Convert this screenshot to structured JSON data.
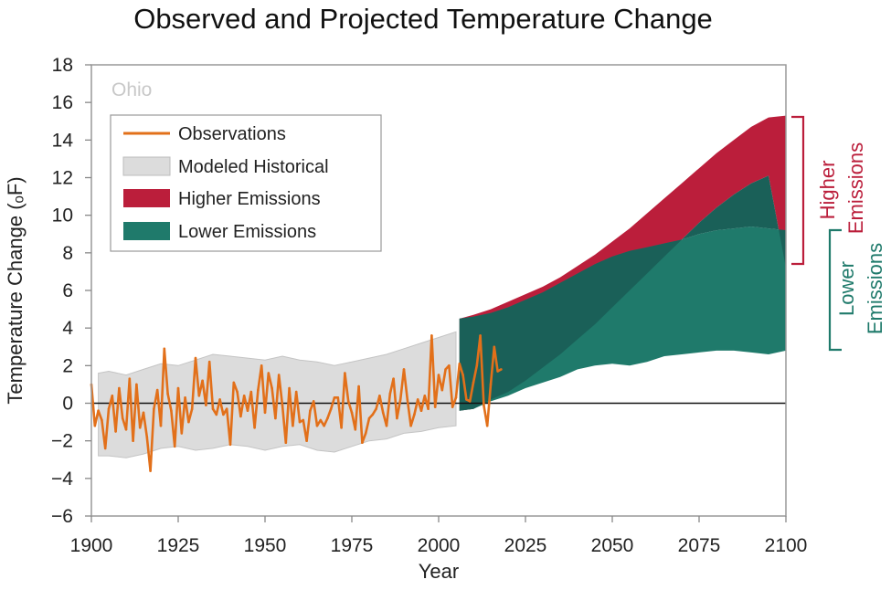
{
  "chart_data": {
    "type": "area",
    "title": "Observed and Projected Temperature Change",
    "xlabel": "Year",
    "ylabel": "Temperature Change (ₒF)",
    "region_label": "Ohio",
    "xlim": [
      1900,
      2100
    ],
    "ylim": [
      -6,
      18
    ],
    "x_ticks": [
      1900,
      1925,
      1950,
      1975,
      2000,
      2025,
      2050,
      2075,
      2100
    ],
    "y_ticks": [
      -6,
      -4,
      -2,
      0,
      2,
      4,
      6,
      8,
      10,
      12,
      14,
      16,
      18
    ],
    "grid": false,
    "zero_line": true,
    "legend": {
      "placement": "top-left",
      "entries": [
        "Observations",
        "Modeled Historical",
        "Higher Emissions",
        "Lower Emissions"
      ]
    },
    "colors": {
      "observations": "#e2701a",
      "modeled_historical": "#dcdcdc",
      "higher_emissions": "#bb1e3b",
      "lower_emissions": "#1f7a6b",
      "overlap": "#1a6058",
      "region_label": "#c8c8c8"
    },
    "series": [
      {
        "name": "Observations",
        "kind": "line",
        "x": [
          1900,
          1901,
          1902,
          1903,
          1904,
          1905,
          1906,
          1907,
          1908,
          1909,
          1910,
          1911,
          1912,
          1913,
          1914,
          1915,
          1916,
          1917,
          1918,
          1919,
          1920,
          1921,
          1922,
          1923,
          1924,
          1925,
          1926,
          1927,
          1928,
          1929,
          1930,
          1931,
          1932,
          1933,
          1934,
          1935,
          1936,
          1937,
          1938,
          1939,
          1940,
          1941,
          1942,
          1943,
          1944,
          1945,
          1946,
          1947,
          1948,
          1949,
          1950,
          1951,
          1952,
          1953,
          1954,
          1955,
          1956,
          1957,
          1958,
          1959,
          1960,
          1961,
          1962,
          1963,
          1964,
          1965,
          1966,
          1967,
          1968,
          1969,
          1970,
          1971,
          1972,
          1973,
          1974,
          1975,
          1976,
          1977,
          1978,
          1979,
          1980,
          1981,
          1982,
          1983,
          1984,
          1985,
          1986,
          1987,
          1988,
          1989,
          1990,
          1991,
          1992,
          1993,
          1994,
          1995,
          1996,
          1997,
          1998,
          1999,
          2000,
          2001,
          2002,
          2003,
          2004,
          2005,
          2006,
          2007,
          2008,
          2009,
          2010,
          2011,
          2012,
          2013,
          2014,
          2015,
          2016,
          2017,
          2018
        ],
        "y": [
          1.0,
          -1.2,
          -0.4,
          -0.9,
          -2.4,
          -0.3,
          0.4,
          -1.5,
          0.8,
          -0.8,
          -1.4,
          1.3,
          -2.0,
          1.0,
          -1.3,
          -0.5,
          -1.8,
          -3.6,
          -0.3,
          0.7,
          -1.2,
          2.9,
          0.5,
          -0.4,
          -2.3,
          0.8,
          -1.6,
          0.3,
          -1.0,
          -0.3,
          2.4,
          0.4,
          1.2,
          -0.1,
          2.2,
          -0.3,
          -0.6,
          0.2,
          -0.6,
          -0.3,
          -2.2,
          1.1,
          0.6,
          -0.7,
          0.4,
          -0.4,
          0.6,
          -1.3,
          0.7,
          2.0,
          -0.5,
          1.6,
          0.8,
          -0.8,
          1.5,
          -0.1,
          -2.1,
          0.8,
          -1.2,
          0.6,
          -1.0,
          -0.9,
          -2.0,
          -0.4,
          0.1,
          -1.2,
          -0.9,
          -1.2,
          -0.8,
          -0.3,
          0.3,
          0.3,
          -1.3,
          1.6,
          0.1,
          -0.5,
          -1.4,
          0.9,
          -2.1,
          -1.6,
          -0.8,
          -0.6,
          -0.3,
          0.4,
          -0.5,
          -1.2,
          0.5,
          1.3,
          -0.8,
          0.2,
          1.8,
          0.2,
          -1.2,
          -0.6,
          0.2,
          -0.4,
          0.4,
          -0.3,
          3.6,
          -0.2,
          1.5,
          0.7,
          1.8,
          2.0,
          -0.2,
          0.3,
          2.1,
          1.5,
          0.2,
          0.1,
          1.1,
          2.0,
          3.6,
          -0.1,
          -1.2,
          1.0,
          3.0,
          1.7,
          1.8
        ]
      },
      {
        "name": "Modeled Historical",
        "kind": "band",
        "x": [
          1902,
          1905,
          1910,
          1915,
          1920,
          1925,
          1930,
          1935,
          1940,
          1945,
          1950,
          1955,
          1960,
          1965,
          1970,
          1975,
          1980,
          1985,
          1990,
          1995,
          2000,
          2005
        ],
        "lower": [
          -2.8,
          -2.8,
          -2.9,
          -2.7,
          -2.4,
          -2.3,
          -2.5,
          -2.4,
          -2.2,
          -2.3,
          -2.5,
          -2.3,
          -2.2,
          -2.5,
          -2.6,
          -2.3,
          -2.0,
          -1.9,
          -1.6,
          -1.5,
          -1.3,
          -1.2
        ],
        "upper": [
          1.6,
          1.7,
          1.5,
          1.8,
          2.1,
          2.0,
          2.3,
          2.6,
          2.5,
          2.4,
          2.3,
          2.5,
          2.3,
          2.2,
          2.0,
          2.2,
          2.4,
          2.6,
          2.9,
          3.2,
          3.5,
          3.8
        ]
      },
      {
        "name": "Higher Emissions",
        "kind": "band",
        "x": [
          2006,
          2010,
          2015,
          2020,
          2025,
          2030,
          2035,
          2040,
          2045,
          2050,
          2055,
          2060,
          2065,
          2070,
          2075,
          2080,
          2085,
          2090,
          2095,
          2100
        ],
        "lower": [
          -0.4,
          -0.3,
          0.2,
          0.6,
          1.2,
          1.9,
          2.6,
          3.4,
          4.2,
          5.1,
          6.0,
          6.9,
          7.8,
          8.7,
          9.6,
          10.4,
          11.1,
          11.7,
          12.1,
          7.2
        ],
        "upper": [
          4.5,
          4.7,
          5.0,
          5.4,
          5.8,
          6.2,
          6.7,
          7.3,
          7.9,
          8.6,
          9.3,
          10.1,
          10.9,
          11.7,
          12.5,
          13.3,
          14.0,
          14.7,
          15.2,
          15.3
        ]
      },
      {
        "name": "Lower Emissions",
        "kind": "band",
        "x": [
          2006,
          2010,
          2015,
          2020,
          2025,
          2030,
          2035,
          2040,
          2045,
          2050,
          2055,
          2060,
          2065,
          2070,
          2075,
          2080,
          2085,
          2090,
          2095,
          2100
        ],
        "lower": [
          -0.4,
          -0.3,
          0.1,
          0.4,
          0.8,
          1.1,
          1.4,
          1.8,
          2.0,
          2.1,
          2.0,
          2.2,
          2.5,
          2.6,
          2.7,
          2.8,
          2.8,
          2.7,
          2.6,
          2.8
        ],
        "upper": [
          4.5,
          4.6,
          4.8,
          5.1,
          5.5,
          5.9,
          6.4,
          6.9,
          7.4,
          7.8,
          8.1,
          8.3,
          8.5,
          8.7,
          9.0,
          9.2,
          9.3,
          9.4,
          9.3,
          9.2
        ]
      }
    ],
    "bracket_labels": {
      "higher": [
        "Higher",
        "Emissions"
      ],
      "lower": [
        "Lower",
        "Emissions"
      ]
    }
  }
}
